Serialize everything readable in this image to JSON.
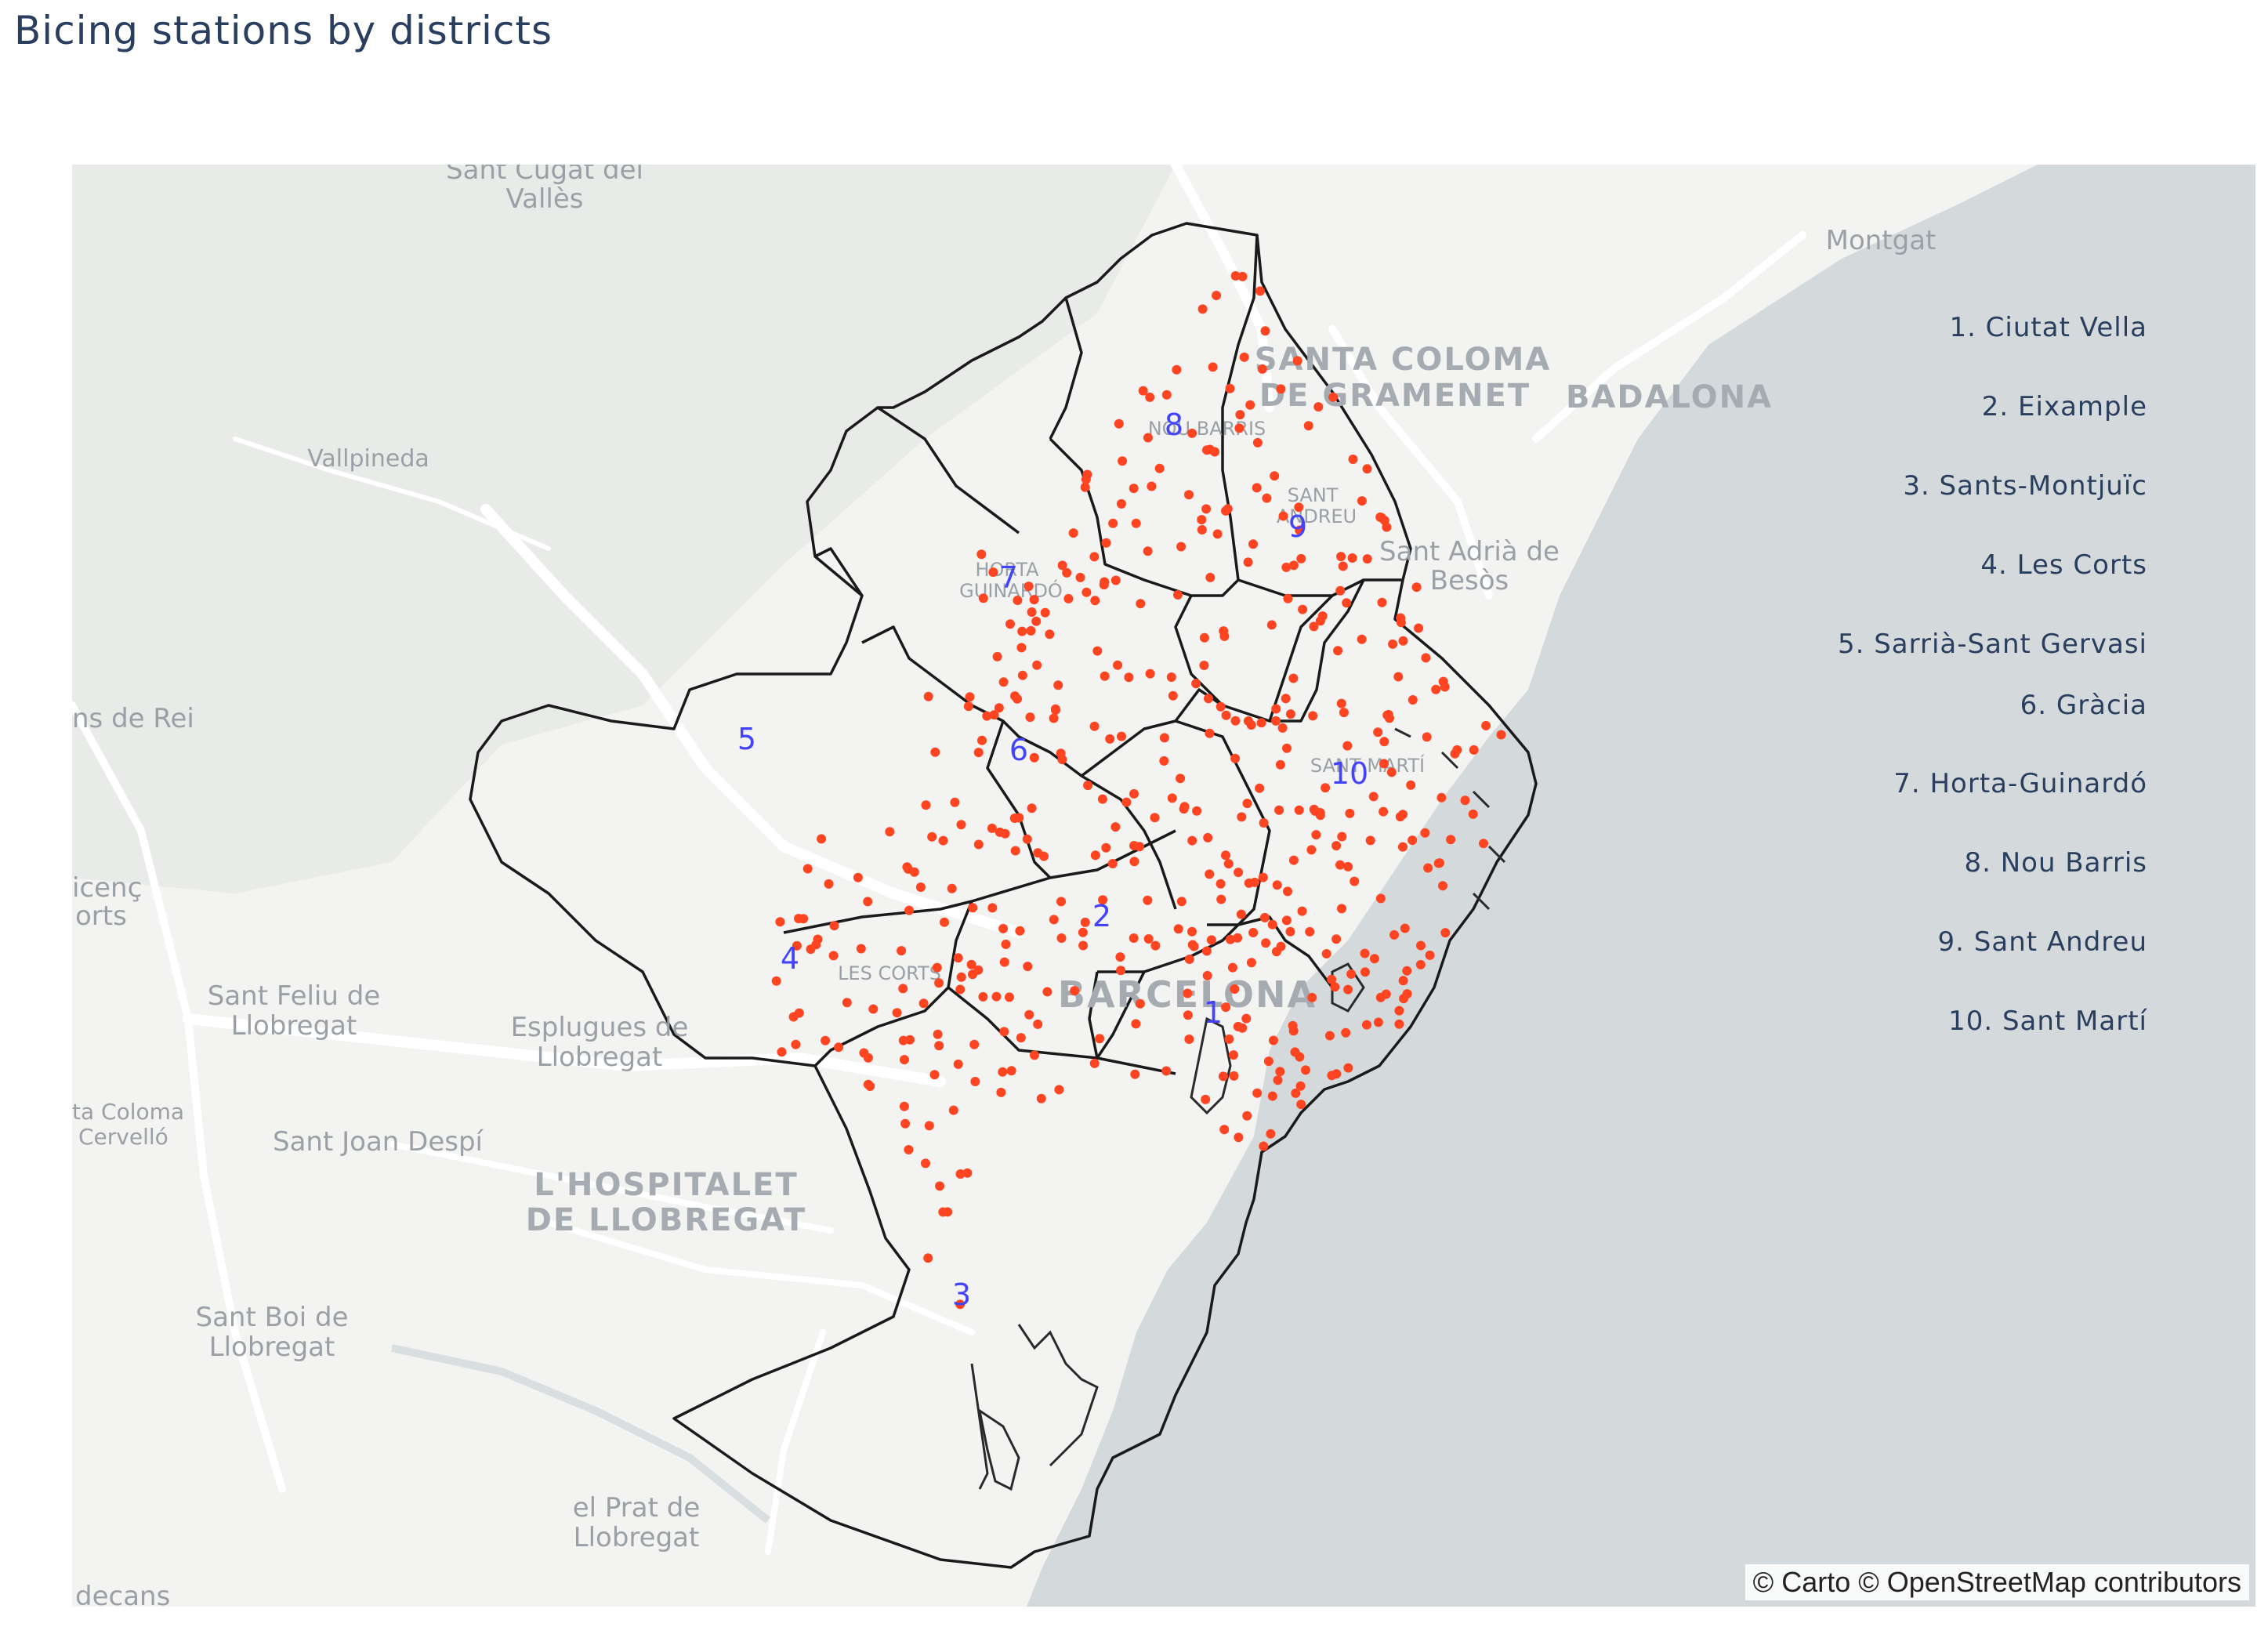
{
  "title": "Bicing stations by districts",
  "attribution": "© Carto © OpenStreetMap contributors",
  "colors": {
    "land": "#f3f3f2",
    "sea": "#d4dadc",
    "station": "#ff4422",
    "district_label": "#4343ff",
    "boundary": "#1a1a1a",
    "text": "#2a3f5f"
  },
  "legend": [
    "1. Ciutat Vella",
    "2. Eixample",
    "3. Sants-Montjuïc",
    "4. Les Corts",
    "5. Sarrià-Sant Gervasi",
    "6. Gràcia",
    "7. Horta-Guinardó",
    "8. Nou Barris",
    "9. Sant Andreu",
    "10. Sant Martí"
  ],
  "district_numbers": [
    "1",
    "2",
    "3",
    "4",
    "5",
    "6",
    "7",
    "8",
    "9",
    "10"
  ],
  "places": {
    "sant_cugat_1": "Sant Cugat del",
    "sant_cugat_2": "Vallès",
    "montgat": "Montgat",
    "santa_coloma_1": "SANTA COLOMA",
    "santa_coloma_2": "DE GRAMENET",
    "badalona": "BADALONA",
    "vallpineda": "Vallpineda",
    "nou_barris": "NOU BARRIS",
    "sant_andreu_1": "SANT",
    "sant_andreu_2": "ANDREU",
    "sant_adria_1": "Sant Adrià de",
    "sant_adria_2": "Besòs",
    "horta_1": "HORTA",
    "horta_2": "GUINARDÓ",
    "sant_just": "ns de Rei",
    "sant_marti": "SANT MARTÍ",
    "vincenc_1": "icenç",
    "vincenc_2": "orts",
    "les_corts": "LES CORTS",
    "sant_feliu_1": "Sant Feliu de",
    "sant_feliu_2": "Llobregat",
    "esplugues_1": "Esplugues de",
    "esplugues_2": "Llobregat",
    "barcelona": "BARCELONA",
    "santa_coloma_cervello_1": "ta Coloma",
    "santa_coloma_cervello_2": "Cervelló",
    "sant_joan": "Sant Joan Despí",
    "hospitalet_1": "L'HOSPITALET",
    "hospitalet_2": "DE LLOBREGAT",
    "sant_boi_1": "Sant Boi de",
    "sant_boi_2": "Llobregat",
    "prat_1": "el Prat de",
    "prat_2": "Llobregat",
    "decans": "decans"
  }
}
